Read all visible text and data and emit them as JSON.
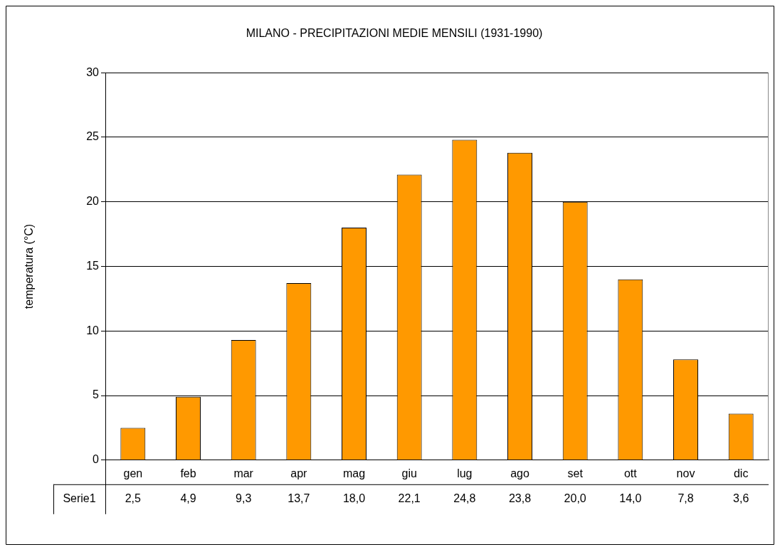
{
  "chart_data": {
    "type": "bar",
    "title": "MILANO - PRECIPITAZIONI MEDIE MENSILI (1931-1990)",
    "ylabel": "temperatura (°C)",
    "categories": [
      "gen",
      "feb",
      "mar",
      "apr",
      "mag",
      "giu",
      "lug",
      "ago",
      "set",
      "ott",
      "nov",
      "dic"
    ],
    "series": [
      {
        "name": "Serie1",
        "color": "#ff9900",
        "values": [
          2.5,
          4.9,
          9.3,
          13.7,
          18.0,
          22.1,
          24.8,
          23.8,
          20.0,
          14.0,
          7.8,
          3.6
        ],
        "value_labels": [
          "2,5",
          "4,9",
          "9,3",
          "13,7",
          "18,0",
          "22,1",
          "24,8",
          "23,8",
          "20,0",
          "14,0",
          "7,8",
          "3,6"
        ]
      }
    ],
    "ylim": [
      0,
      30
    ],
    "yticks": [
      0,
      5,
      10,
      15,
      20,
      25,
      30
    ],
    "grid": "y",
    "legend": false
  }
}
